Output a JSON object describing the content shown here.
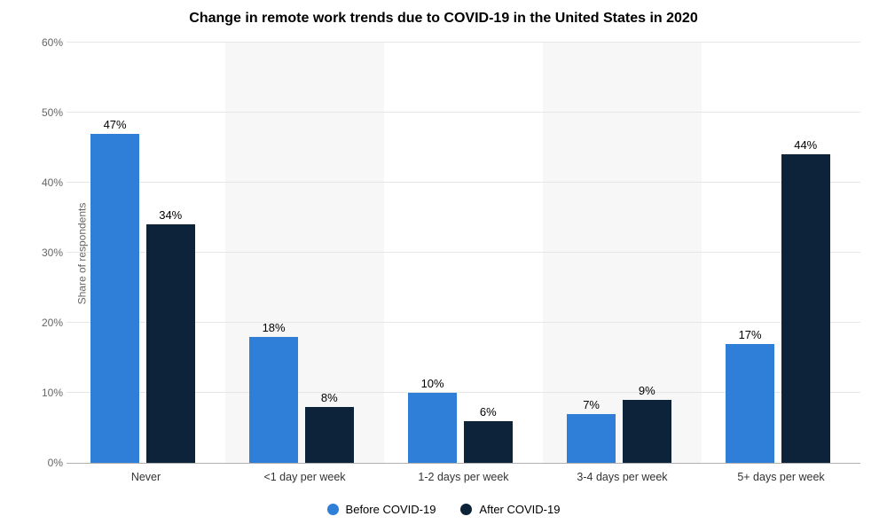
{
  "chart": {
    "type": "bar",
    "title": "Change in remote work trends due to COVID-19 in the United States in 2020",
    "title_fontsize": 16,
    "ylabel": "Share of respondents",
    "ylabel_fontsize": 12,
    "ylim": [
      0,
      60
    ],
    "ytick_step": 10,
    "yticks": [
      "0%",
      "10%",
      "20%",
      "30%",
      "40%",
      "50%",
      "60%"
    ],
    "categories": [
      "Never",
      "<1 day per week",
      "1-2 days per week",
      "3-4 days per week",
      "5+ days per week"
    ],
    "series": [
      {
        "name": "Before COVID-19",
        "color": "#2f7ed8",
        "values": [
          47,
          18,
          10,
          7,
          17
        ],
        "labels": [
          "47%",
          "18%",
          "10%",
          "7%",
          "17%"
        ]
      },
      {
        "name": "After COVID-19",
        "color": "#0d233a",
        "values": [
          34,
          8,
          6,
          9,
          44
        ],
        "labels": [
          "34%",
          "8%",
          "6%",
          "9%",
          "44%"
        ]
      }
    ],
    "background_color": "#ffffff",
    "band_color_alt": "#f7f7f8",
    "grid_color": "#e6e6e6",
    "axis_color": "#b0b0b0",
    "tick_font_color": "#666666",
    "xlabel_font_size": 12.5,
    "data_label_font_size": 13,
    "bar_width_ratio": 0.31,
    "bar_gap_ratio": 0.04,
    "legend_position": "bottom"
  }
}
